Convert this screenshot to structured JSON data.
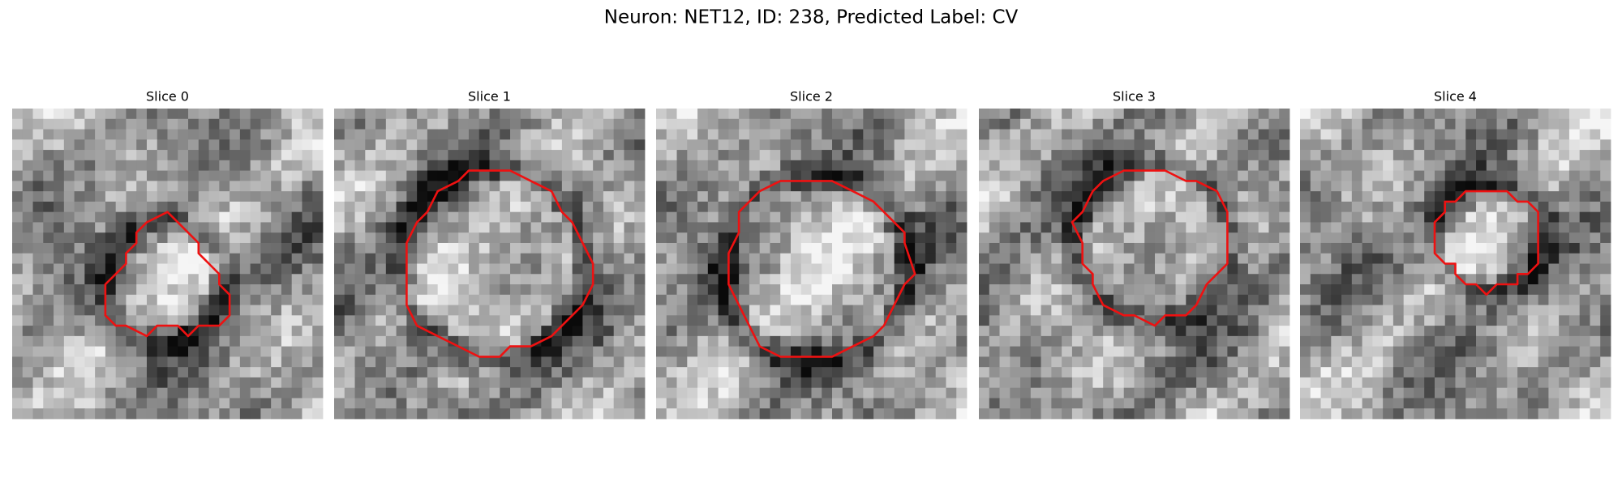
{
  "title": "Neuron: NET12, ID: 238, Predicted Label: CV",
  "panels": [
    {
      "title": "Slice 0"
    },
    {
      "title": "Slice 1"
    },
    {
      "title": "Slice 2"
    },
    {
      "title": "Slice 3"
    },
    {
      "title": "Slice 4"
    }
  ]
}
